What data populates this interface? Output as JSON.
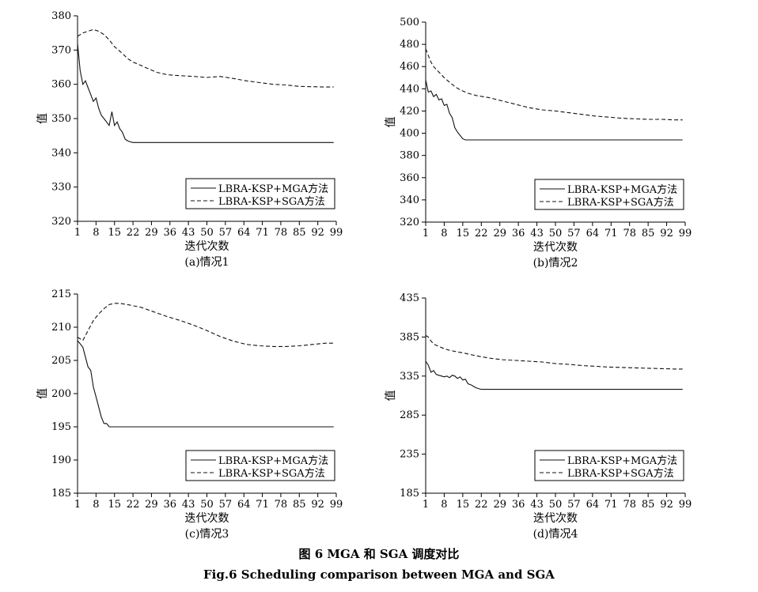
{
  "figure": {
    "caption_cn": "图 6   MGA 和 SGA 调度对比",
    "caption_en": "Fig.6   Scheduling comparison between MGA and SGA"
  },
  "chart_data": [
    {
      "type": "line",
      "subtitle": "(a)情况1",
      "xlabel": "迭代次数",
      "ylabel": "值",
      "xticks": [
        1,
        8,
        15,
        22,
        29,
        36,
        43,
        50,
        57,
        64,
        71,
        78,
        85,
        92,
        99
      ],
      "yticks": [
        320,
        330,
        340,
        350,
        360,
        370,
        380
      ],
      "xlim": [
        1,
        99
      ],
      "ylim": [
        320,
        380
      ],
      "legend": "bottom-right",
      "series": [
        {
          "name": "LBRA-KSP+MGA方法",
          "style": "solid",
          "x": [
            1,
            2,
            3,
            4,
            5,
            6,
            7,
            8,
            9,
            10,
            11,
            12,
            13,
            14,
            15,
            16,
            17,
            18,
            19,
            20,
            21,
            22,
            23,
            25,
            30,
            40,
            50,
            60,
            70,
            80,
            90,
            98
          ],
          "y": [
            372,
            364,
            360,
            361,
            359,
            357,
            355,
            356,
            353,
            351,
            350,
            349,
            348,
            352,
            348,
            349,
            347,
            346,
            344,
            343.5,
            343.2,
            343,
            343,
            343,
            343,
            343,
            343,
            343,
            343,
            343,
            343,
            343
          ]
        },
        {
          "name": "LBRA-KSP+SGA方法",
          "style": "dashed",
          "x": [
            1,
            3,
            5,
            7,
            9,
            11,
            13,
            15,
            18,
            20,
            22,
            25,
            28,
            31,
            35,
            40,
            45,
            50,
            55,
            60,
            65,
            70,
            75,
            80,
            85,
            90,
            95,
            98
          ],
          "y": [
            374,
            375,
            375.5,
            376,
            375.5,
            374.5,
            373,
            371,
            369,
            367.5,
            366.5,
            365.5,
            364.5,
            363.5,
            362.8,
            362.5,
            362.3,
            362,
            362.3,
            361.7,
            361,
            360.5,
            360,
            359.8,
            359.4,
            359.3,
            359.2,
            359.2
          ]
        }
      ]
    },
    {
      "type": "line",
      "subtitle": "(b)情况2",
      "xlabel": "迭代次数",
      "ylabel": "值",
      "xticks": [
        1,
        8,
        15,
        22,
        29,
        36,
        43,
        50,
        57,
        64,
        71,
        78,
        85,
        92,
        99
      ],
      "yticks": [
        320,
        340,
        360,
        380,
        400,
        420,
        440,
        460,
        480,
        500
      ],
      "xlim": [
        1,
        99
      ],
      "ylim": [
        320,
        500
      ],
      "legend": "bottom-right",
      "series": [
        {
          "name": "LBRA-KSP+MGA方法",
          "style": "solid",
          "x": [
            1,
            2,
            3,
            4,
            5,
            6,
            7,
            8,
            9,
            10,
            11,
            12,
            13,
            14,
            15,
            16,
            17,
            18,
            20,
            25,
            30,
            40,
            50,
            60,
            70,
            80,
            90,
            98
          ],
          "y": [
            448,
            437,
            438,
            433,
            435,
            430,
            431,
            425,
            426,
            418,
            414,
            405,
            401,
            398,
            395,
            394,
            394,
            394,
            394,
            394,
            394,
            394,
            394,
            394,
            394,
            394,
            394,
            394
          ]
        },
        {
          "name": "LBRA-KSP+SGA方法",
          "style": "dashed",
          "x": [
            1,
            2,
            3,
            4,
            6,
            8,
            10,
            12,
            14,
            17,
            20,
            25,
            30,
            35,
            40,
            45,
            50,
            55,
            60,
            65,
            70,
            75,
            80,
            85,
            90,
            95,
            98
          ],
          "y": [
            476,
            470,
            464,
            460,
            455,
            450,
            446,
            442,
            439,
            436,
            434,
            432,
            429,
            426,
            423,
            421,
            420,
            418.5,
            417,
            415.5,
            414.5,
            413.5,
            413,
            412.5,
            412.5,
            412,
            412
          ]
        }
      ]
    },
    {
      "type": "line",
      "subtitle": "(c)情况3",
      "xlabel": "迭代次数",
      "ylabel": "值",
      "xticks": [
        1,
        8,
        15,
        22,
        29,
        36,
        43,
        50,
        57,
        64,
        71,
        78,
        85,
        92,
        99
      ],
      "yticks": [
        185,
        190,
        195,
        200,
        205,
        210,
        215
      ],
      "xlim": [
        1,
        99
      ],
      "ylim": [
        185,
        215
      ],
      "legend": "bottom-right",
      "series": [
        {
          "name": "LBRA-KSP+MGA方法",
          "style": "solid",
          "x": [
            1,
            2,
            3,
            4,
            5,
            6,
            7,
            8,
            9,
            10,
            11,
            12,
            13,
            14,
            15,
            16,
            18,
            20,
            30,
            40,
            50,
            60,
            70,
            80,
            90,
            98
          ],
          "y": [
            208,
            207.5,
            207,
            205.5,
            204,
            203.5,
            201,
            199.5,
            198,
            196.5,
            195.5,
            195.5,
            195,
            195,
            195,
            195,
            195,
            195,
            195,
            195,
            195,
            195,
            195,
            195,
            195,
            195
          ]
        },
        {
          "name": "LBRA-KSP+SGA方法",
          "style": "dashed",
          "x": [
            1,
            3,
            5,
            7,
            9,
            11,
            13,
            15,
            17,
            20,
            25,
            30,
            35,
            40,
            45,
            50,
            55,
            60,
            65,
            70,
            75,
            80,
            85,
            90,
            95,
            98
          ],
          "y": [
            208.5,
            208,
            209.5,
            211,
            212,
            212.8,
            213.4,
            213.6,
            213.6,
            213.4,
            213,
            212.3,
            211.6,
            211,
            210.3,
            209.5,
            208.6,
            207.9,
            207.4,
            207.2,
            207.1,
            207.1,
            207.2,
            207.4,
            207.6,
            207.6
          ]
        }
      ]
    },
    {
      "type": "line",
      "subtitle": "(d)情况4",
      "xlabel": "迭代次数",
      "ylabel": "值",
      "xticks": [
        1,
        8,
        15,
        22,
        29,
        36,
        43,
        50,
        57,
        64,
        71,
        78,
        85,
        92,
        99
      ],
      "yticks": [
        185,
        235,
        285,
        335,
        385,
        435
      ],
      "xlim": [
        1,
        99
      ],
      "ylim": [
        185,
        435
      ],
      "legend": "bottom-right",
      "series": [
        {
          "name": "LBRA-KSP+MGA方法",
          "style": "solid",
          "x": [
            1,
            2,
            3,
            4,
            5,
            6,
            7,
            8,
            9,
            10,
            11,
            12,
            13,
            14,
            15,
            16,
            17,
            18,
            19,
            20,
            21,
            22,
            25,
            30,
            40,
            50,
            60,
            70,
            80,
            90,
            98
          ],
          "y": [
            354,
            349,
            340,
            342,
            337,
            336,
            335,
            334,
            335,
            333,
            336,
            335,
            332,
            334,
            330,
            331,
            325,
            324,
            322,
            320,
            319,
            318,
            318,
            318,
            318,
            318,
            318,
            318,
            318,
            318,
            318
          ]
        },
        {
          "name": "LBRA-KSP+SGA方法",
          "style": "dashed",
          "x": [
            1,
            2,
            3,
            4,
            6,
            8,
            10,
            13,
            16,
            20,
            25,
            30,
            35,
            40,
            45,
            50,
            55,
            60,
            65,
            70,
            75,
            80,
            85,
            90,
            95,
            98
          ],
          "y": [
            387,
            385,
            380,
            376,
            373,
            370,
            368,
            366,
            364,
            361,
            358,
            356,
            355,
            354,
            353,
            351,
            350,
            348.5,
            347.5,
            346.5,
            346,
            345.5,
            345,
            344.5,
            344,
            344
          ]
        }
      ]
    }
  ]
}
